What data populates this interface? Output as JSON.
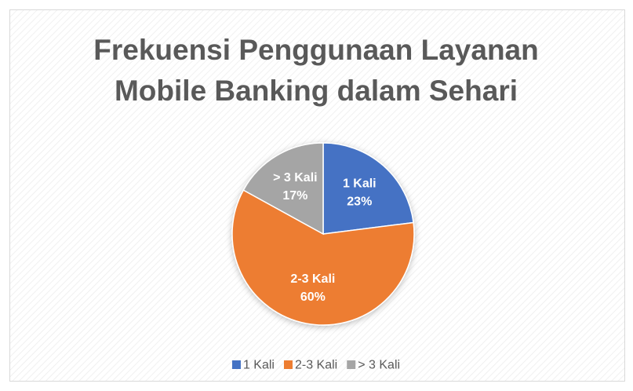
{
  "chart_data": {
    "type": "pie",
    "title": "Frekuensi Penggunaan Layanan Mobile Banking dalam Sehari",
    "categories": [
      "1 Kali",
      "2-3 Kali",
      "> 3 Kali"
    ],
    "values": [
      23,
      60,
      17
    ],
    "value_labels": [
      "23%",
      "60%",
      "17%"
    ],
    "colors": [
      "#4472c4",
      "#ed7d31",
      "#a5a5a5"
    ],
    "legend": "bottom"
  }
}
